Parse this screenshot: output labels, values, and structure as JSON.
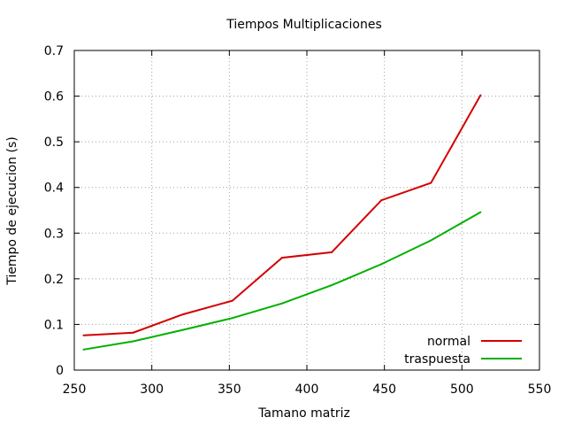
{
  "chart_data": {
    "type": "line",
    "title": "Tiempos Multiplicaciones",
    "xlabel": "Tamano matriz",
    "ylabel": "Tiempo de ejecucion (s)",
    "xlim": [
      250,
      550
    ],
    "ylim": [
      0,
      0.7
    ],
    "xticks": [
      250,
      300,
      350,
      400,
      450,
      500,
      550
    ],
    "yticks": [
      0,
      0.1,
      0.2,
      0.3,
      0.4,
      0.5,
      0.6,
      0.7
    ],
    "grid": true,
    "legend_position": "bottom-right",
    "x": [
      256,
      288,
      320,
      352,
      384,
      416,
      448,
      480,
      512
    ],
    "series": [
      {
        "name": "normal",
        "color": "#d40000",
        "values": [
          0.076,
          0.082,
          0.122,
          0.152,
          0.246,
          0.258,
          0.372,
          0.41,
          0.602
        ]
      },
      {
        "name": "traspuesta",
        "color": "#00b000",
        "values": [
          0.045,
          0.063,
          0.088,
          0.114,
          0.146,
          0.186,
          0.232,
          0.284,
          0.346
        ]
      }
    ]
  }
}
